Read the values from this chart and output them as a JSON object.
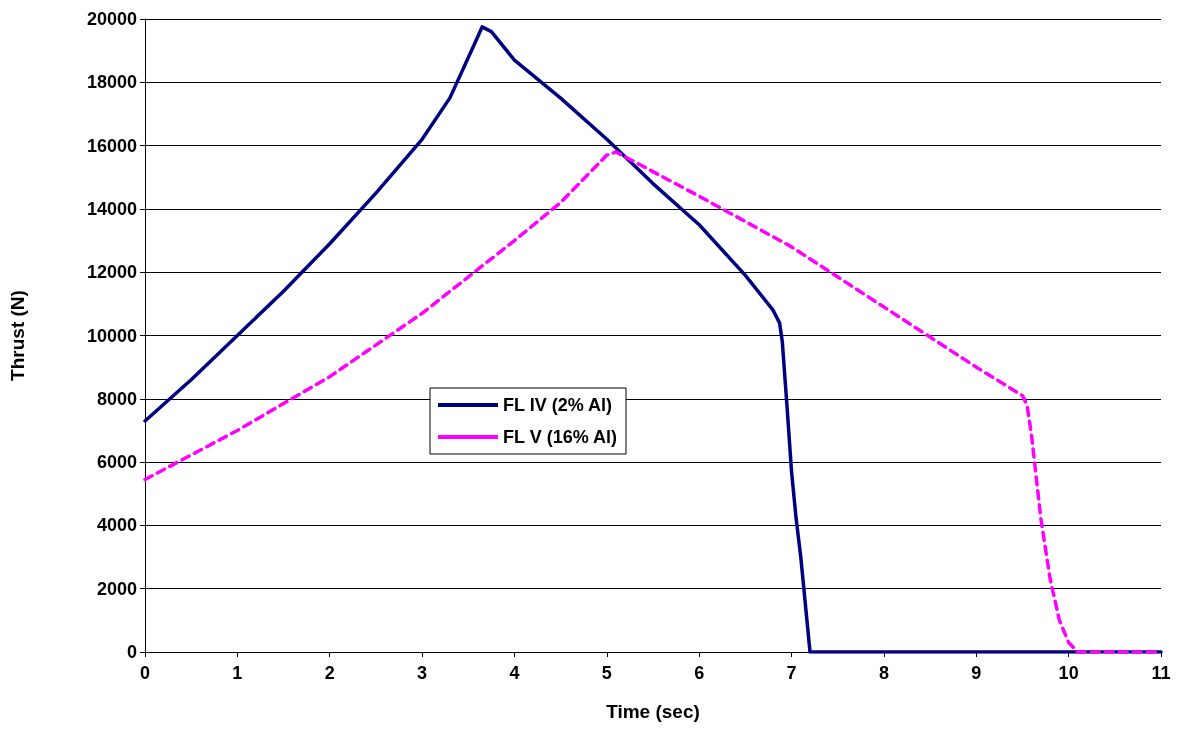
{
  "chart_data": {
    "type": "line",
    "xlabel": "Time (sec)",
    "ylabel": "Thrust (N)",
    "xlim": [
      0,
      11
    ],
    "xticks": [
      0,
      1,
      2,
      3,
      4,
      5,
      6,
      7,
      8,
      9,
      10,
      11
    ],
    "ylim": [
      0,
      20000
    ],
    "yticks": [
      0,
      2000,
      4000,
      6000,
      8000,
      10000,
      12000,
      14000,
      16000,
      18000,
      20000
    ],
    "grid": "y",
    "legend": "center",
    "marker": "none",
    "series": [
      {
        "name": "FL IV (2% Al)",
        "color": "#000080",
        "line_style": "solid",
        "x": [
          0,
          0.5,
          1,
          1.5,
          2,
          2.5,
          3,
          3.3,
          3.55,
          3.65,
          3.75,
          4,
          4.5,
          5,
          5.5,
          6,
          6.5,
          6.8,
          6.87,
          6.9,
          6.95,
          7,
          7.05,
          7.1,
          7.15,
          7.2,
          7.3,
          11
        ],
        "values": [
          7300,
          8600,
          10000,
          11400,
          12900,
          14500,
          16200,
          17500,
          19100,
          19750,
          19600,
          18700,
          17500,
          16200,
          14800,
          13500,
          11900,
          10800,
          10400,
          9800,
          7800,
          5700,
          4200,
          3000,
          1500,
          0,
          0,
          0
        ]
      },
      {
        "name": "FL V (16% Al)",
        "color": "#ff00ff",
        "line_style": "dashed",
        "x": [
          0,
          1,
          2,
          3,
          4,
          4.5,
          5,
          5.1,
          6,
          7,
          8,
          9,
          9.5,
          9.55,
          9.6,
          9.65,
          9.7,
          9.8,
          9.9,
          10,
          10.1,
          11
        ],
        "values": [
          5450,
          7000,
          8700,
          10700,
          13000,
          14200,
          15700,
          15800,
          14400,
          12800,
          10900,
          9000,
          8100,
          7800,
          6800,
          5500,
          4200,
          2300,
          1000,
          300,
          0,
          0
        ]
      }
    ]
  }
}
